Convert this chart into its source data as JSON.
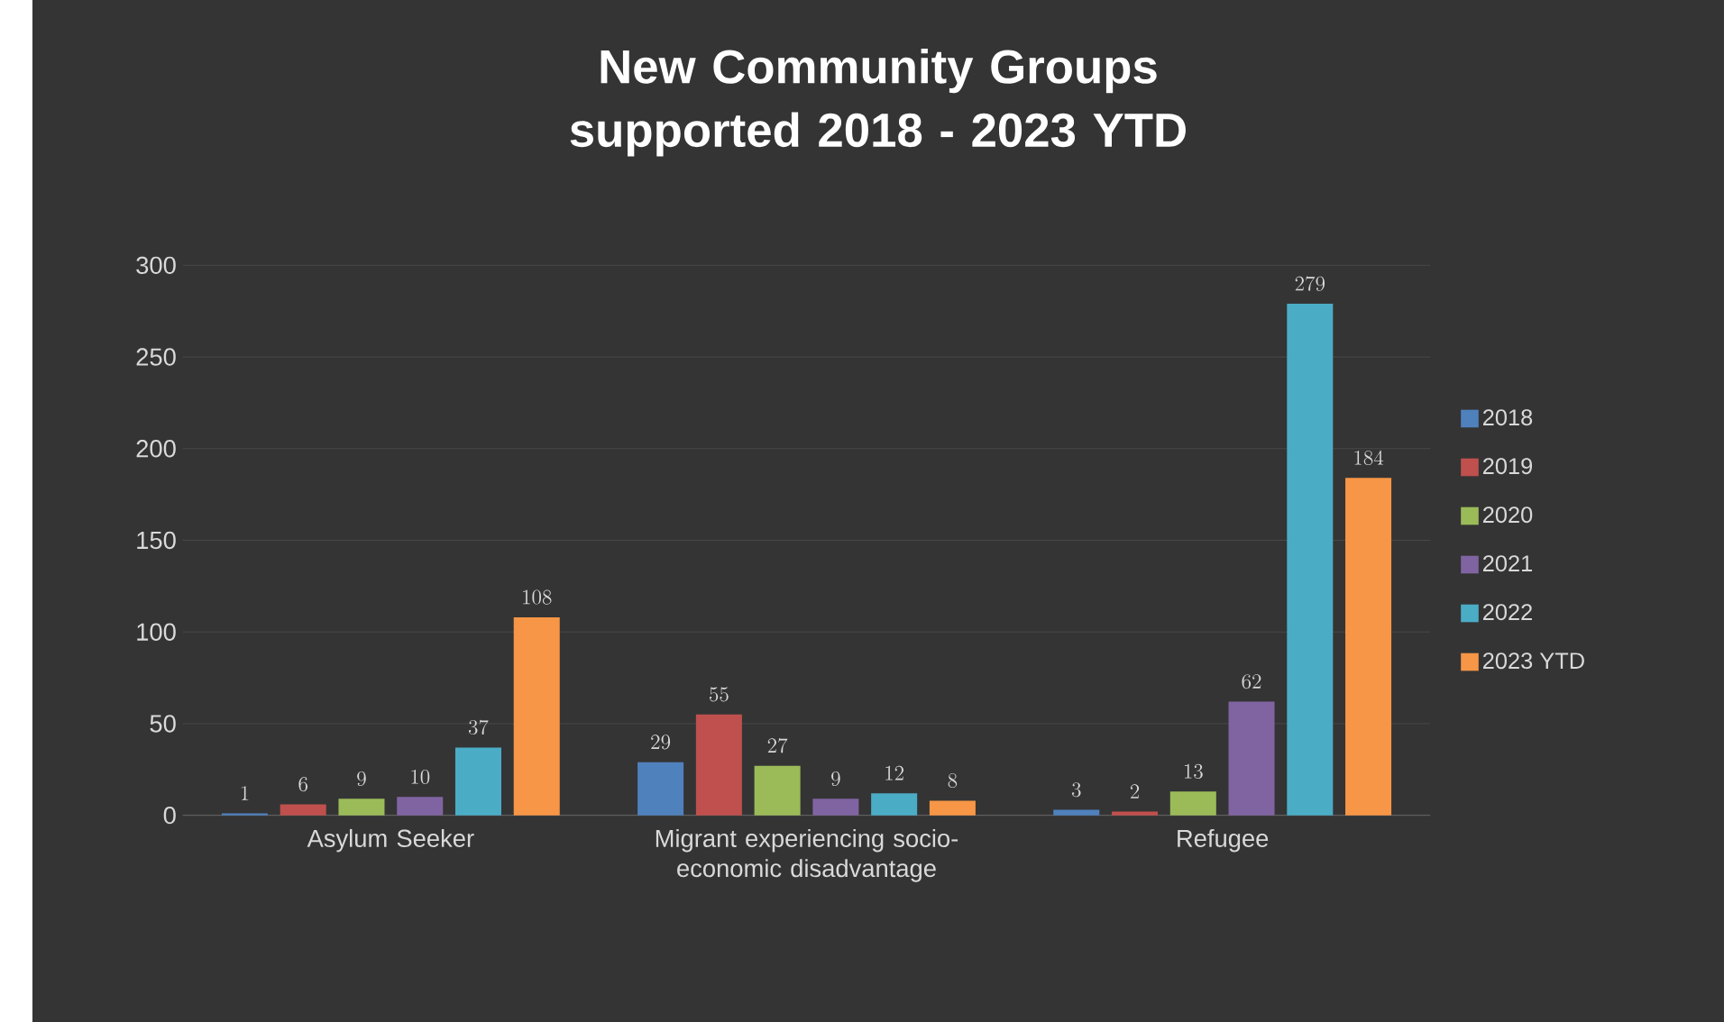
{
  "chart_data": {
    "type": "bar",
    "title": "New Community Groups supported 2018 - 2023 YTD",
    "categories": [
      "Asylum Seeker",
      "Migrant experiencing socio-economic disadvantage",
      "Refugee"
    ],
    "series": [
      {
        "name": "2018",
        "color": "#4f81bd",
        "values": [
          1,
          29,
          3
        ]
      },
      {
        "name": "2019",
        "color": "#c0504d",
        "values": [
          6,
          55,
          2
        ]
      },
      {
        "name": "2020",
        "color": "#9bbb59",
        "values": [
          9,
          27,
          13
        ]
      },
      {
        "name": "2021",
        "color": "#8064a2",
        "values": [
          10,
          9,
          62
        ]
      },
      {
        "name": "2022",
        "color": "#4bacc6",
        "values": [
          37,
          12,
          279
        ]
      },
      {
        "name": "2023 YTD",
        "color": "#f79646",
        "values": [
          108,
          8,
          184
        ]
      }
    ],
    "ylim": [
      0,
      300
    ],
    "yticks": [
      0,
      50,
      100,
      150,
      200,
      250,
      300
    ],
    "grid": "y",
    "legend": "right",
    "data_labels": true
  }
}
